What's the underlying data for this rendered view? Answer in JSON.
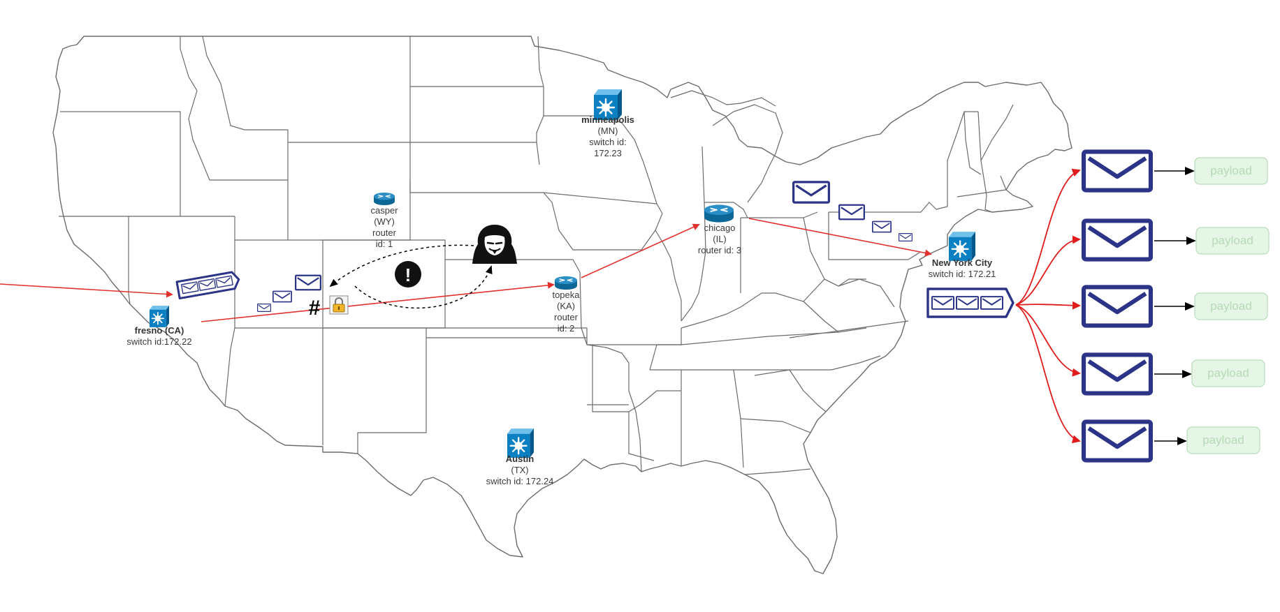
{
  "nodes": {
    "minneapolis": {
      "name": "minneapolis",
      "state": "(MN)",
      "l1": "switch id:",
      "l2": "172.23"
    },
    "casper": {
      "name": "casper",
      "state": "(WY)",
      "l1": "router",
      "l2": "id: 1"
    },
    "chicago": {
      "name": "chicago",
      "state": "(IL)",
      "l1": "router id: 3"
    },
    "topeka": {
      "name": "topeka",
      "state": "(KA)",
      "l1": "router",
      "l2": "id: 2"
    },
    "fresno": {
      "name": "fresno (CA)",
      "l1": "switch id:172.22"
    },
    "nyc": {
      "name": "New York City",
      "l1": "switch id: 172.21"
    },
    "austin": {
      "name": "Austin",
      "state": "(TX)",
      "l1": "switch id: 172.24"
    }
  },
  "payloads": [
    "payload",
    "payload",
    "payload",
    "payload",
    "payload"
  ],
  "symbols": {
    "hash": "#",
    "alert": "!"
  },
  "colors": {
    "map_line": "#6b6b6b",
    "envelope": "#2b3487",
    "cisco_blue": "#0a7fc2",
    "router_blue": "#0f6d9e",
    "flow_red": "#e2312d",
    "fanout_red": "#e01b1b"
  }
}
